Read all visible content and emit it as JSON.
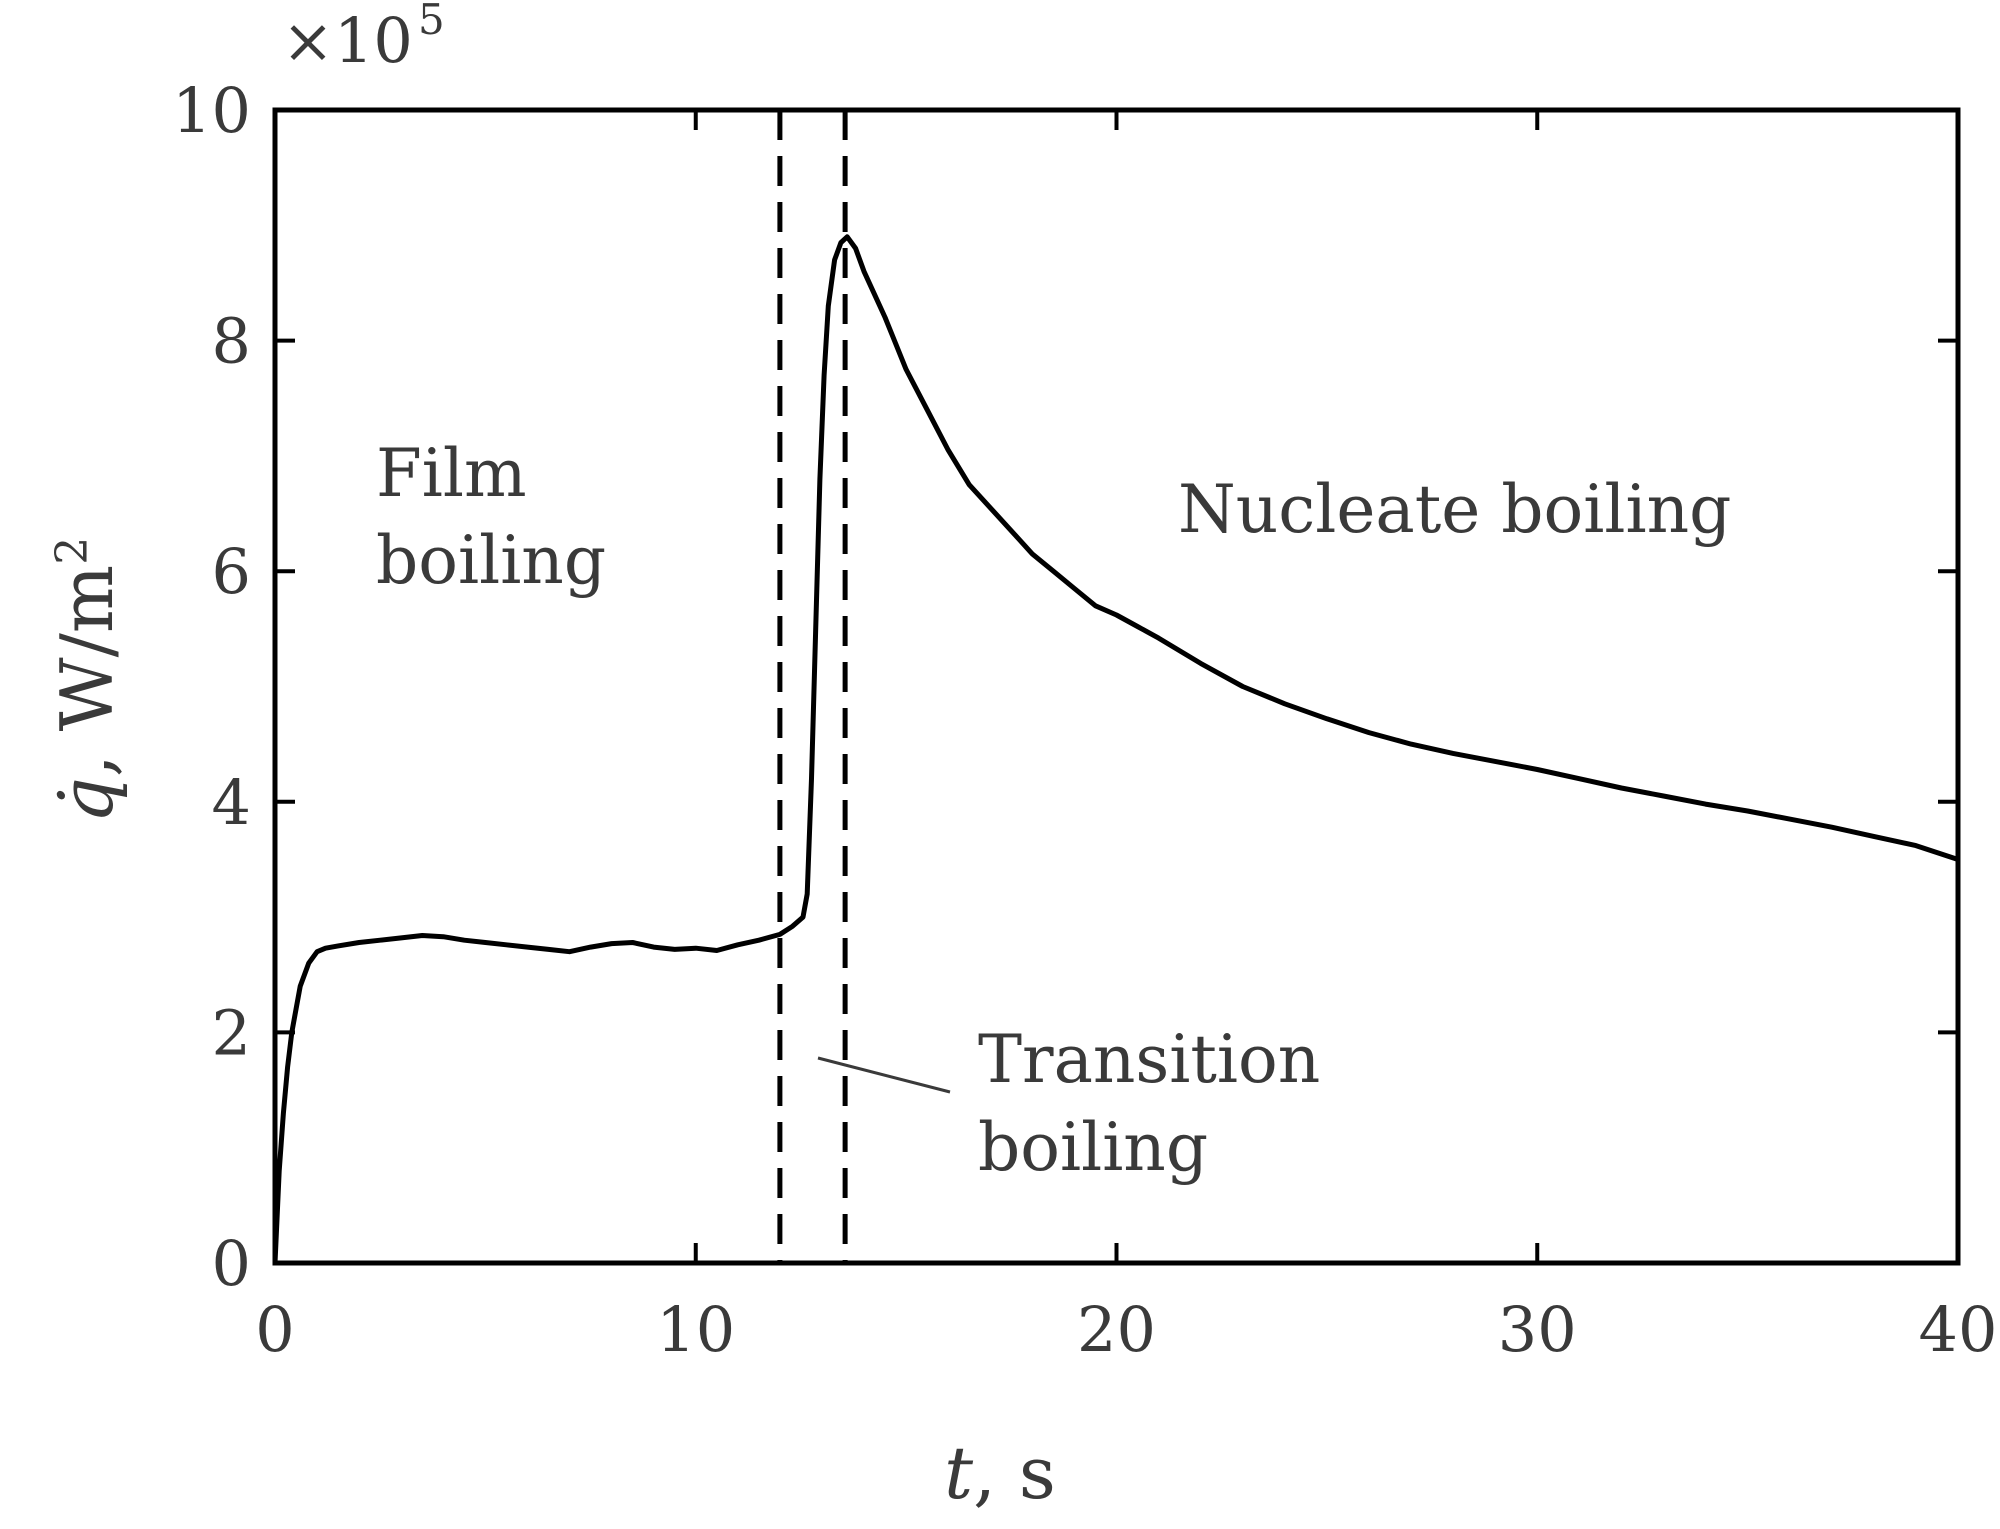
{
  "chart_data": {
    "type": "line",
    "xlabel": "t, s",
    "ylabel": "q̇, W/m²",
    "ylabel_parts": {
      "symbol": "q̇",
      "sep": ", ",
      "unit_base": "W/m",
      "unit_exp": "2"
    },
    "xlabel_parts": {
      "symbol": "t",
      "rest": ", s"
    },
    "xlim": [
      0,
      40
    ],
    "ylim": [
      0,
      10
    ],
    "x_ticks": [
      0,
      10,
      20,
      30,
      40
    ],
    "y_ticks": [
      0,
      2,
      4,
      6,
      8,
      10
    ],
    "y_multiplier": "×10",
    "y_multiplier_exp": "5",
    "grid": false,
    "box": true,
    "series": [
      {
        "color": "#000000",
        "x": [
          0,
          0.1,
          0.2,
          0.3,
          0.4,
          0.5,
          0.6,
          0.8,
          1.0,
          1.2,
          1.5,
          2.0,
          2.5,
          3.0,
          3.5,
          4.0,
          4.5,
          5.0,
          5.5,
          6.0,
          6.5,
          7.0,
          7.5,
          8.0,
          8.5,
          9.0,
          9.5,
          10.0,
          10.5,
          11.0,
          11.5,
          12.0,
          12.3,
          12.55,
          12.65,
          12.75,
          12.85,
          12.95,
          13.05,
          13.15,
          13.3,
          13.45,
          13.6,
          13.8,
          14.0,
          14.5,
          15.0,
          15.5,
          16.0,
          16.5,
          17.0,
          17.5,
          18.0,
          18.5,
          19.0,
          19.5,
          20.0,
          20.5,
          21.0,
          22.0,
          23.0,
          24.0,
          25.0,
          26.0,
          27.0,
          28.0,
          29.0,
          30.0,
          31.0,
          32.0,
          33.0,
          34.0,
          35.0,
          36.0,
          37.0,
          38.0,
          39.0,
          40.0
        ],
        "y": [
          0,
          0.8,
          1.3,
          1.7,
          2.0,
          2.2,
          2.4,
          2.6,
          2.7,
          2.73,
          2.75,
          2.78,
          2.8,
          2.82,
          2.84,
          2.83,
          2.8,
          2.78,
          2.76,
          2.74,
          2.72,
          2.7,
          2.74,
          2.77,
          2.78,
          2.74,
          2.72,
          2.73,
          2.71,
          2.76,
          2.8,
          2.85,
          2.92,
          3.0,
          3.2,
          4.2,
          5.5,
          6.8,
          7.7,
          8.3,
          8.7,
          8.85,
          8.9,
          8.8,
          8.6,
          8.2,
          7.75,
          7.4,
          7.05,
          6.75,
          6.55,
          6.35,
          6.15,
          6.0,
          5.85,
          5.7,
          5.62,
          5.52,
          5.42,
          5.2,
          5.0,
          4.85,
          4.72,
          4.6,
          4.5,
          4.42,
          4.35,
          4.28,
          4.2,
          4.12,
          4.05,
          3.98,
          3.92,
          3.85,
          3.78,
          3.7,
          3.62,
          3.5
        ]
      }
    ],
    "vlines": [
      12.0,
      13.55
    ],
    "annotations": {
      "film_1": "Film",
      "film_2": "boiling",
      "nucleate": "Nucleate boiling",
      "transition_1": "Transition",
      "transition_2": "boiling"
    }
  }
}
